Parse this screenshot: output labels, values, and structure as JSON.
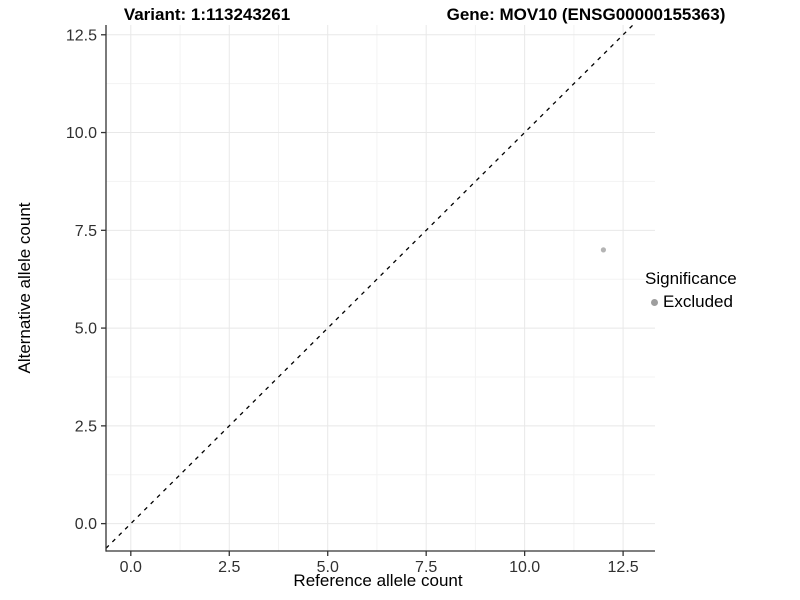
{
  "chart_data": {
    "type": "scatter",
    "title_left": "Variant: 1:113243261",
    "title_right": "Gene: MOV10 (ENSG00000155363)",
    "xlabel": "Reference allele count",
    "ylabel": "Alternative allele count",
    "xlim": [
      -0.63,
      13.31
    ],
    "ylim": [
      -0.7,
      12.75
    ],
    "x_ticks": [
      0,
      2.5,
      5,
      7.5,
      10,
      12.5
    ],
    "x_tick_labels": [
      "0.0",
      "2.5",
      "5.0",
      "7.5",
      "10.0",
      "12.5"
    ],
    "y_ticks": [
      0,
      2.5,
      5,
      7.5,
      10,
      12.5
    ],
    "y_tick_labels": [
      "0.0",
      "2.5",
      "5.0",
      "7.5",
      "10.0",
      "12.5"
    ],
    "x_minor_ticks": [
      1.25,
      3.75,
      6.25,
      8.75,
      11.25
    ],
    "y_minor_ticks": [
      1.25,
      3.75,
      6.25,
      8.75,
      11.25
    ],
    "grid": "major+minor",
    "legend_position": "right",
    "series": [
      {
        "name": "Excluded",
        "marker": "circle",
        "color": "#b4b4b4",
        "points": [
          {
            "x": 12,
            "y": 7
          }
        ]
      }
    ],
    "reference_line": {
      "slope": 1,
      "intercept": 0,
      "style": "dashed",
      "color": "#000000"
    },
    "legend": {
      "title": "Significance",
      "entries": [
        {
          "label": "Excluded",
          "color": "#9e9e9e",
          "marker": "circle"
        }
      ]
    }
  },
  "colors": {
    "background": "#ffffff",
    "grid_major": "#e8e8e8",
    "grid_minor": "#f3f3f3",
    "axis_line": "#333333",
    "tick_label": "#303030"
  }
}
